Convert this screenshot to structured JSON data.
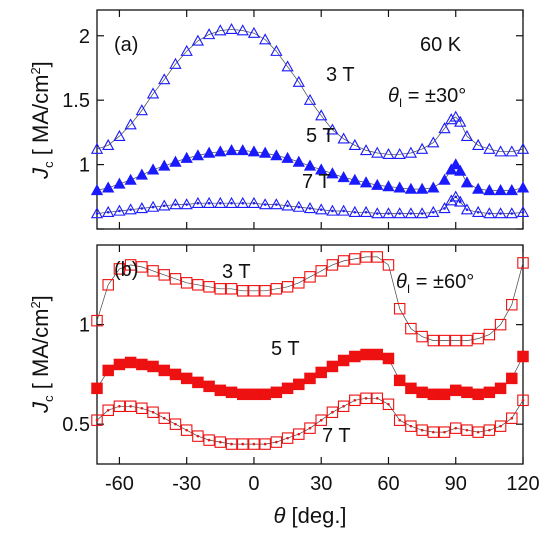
{
  "chart_data": [
    {
      "type": "scatter",
      "panel_label": "(a)",
      "annotations": [
        "60 K",
        "θ",
        "I",
        " = ±30°"
      ],
      "ylabel_parts": [
        "J",
        "c",
        " [ MA/cm",
        "2",
        "]"
      ],
      "xlim": [
        -70,
        120
      ],
      "ylim": [
        0.5,
        2.2
      ],
      "yticks": [
        {
          "value": 0.5,
          "label": ""
        },
        {
          "value": 1.0,
          "label": "1"
        },
        {
          "value": 1.5,
          "label": "1.5"
        },
        {
          "value": 2.0,
          "label": "2"
        }
      ],
      "series": [
        {
          "name": "3 T",
          "marker": "triangle-open",
          "color": "#1a1aff",
          "x": [
            -70,
            -65,
            -60,
            -55,
            -50,
            -45,
            -40,
            -35,
            -30,
            -25,
            -20,
            -15,
            -10,
            -5,
            0,
            5,
            10,
            15,
            20,
            25,
            30,
            35,
            40,
            45,
            50,
            55,
            60,
            65,
            70,
            75,
            80,
            85,
            88,
            90,
            92,
            95,
            100,
            105,
            110,
            115,
            120
          ],
          "y": [
            1.12,
            1.15,
            1.22,
            1.31,
            1.42,
            1.55,
            1.66,
            1.78,
            1.88,
            1.96,
            2.01,
            2.04,
            2.05,
            2.04,
            2.02,
            1.97,
            1.88,
            1.76,
            1.64,
            1.5,
            1.38,
            1.27,
            1.2,
            1.15,
            1.11,
            1.09,
            1.08,
            1.08,
            1.09,
            1.12,
            1.17,
            1.28,
            1.35,
            1.37,
            1.33,
            1.22,
            1.15,
            1.12,
            1.1,
            1.1,
            1.12
          ]
        },
        {
          "name": "5 T",
          "marker": "triangle-filled",
          "color": "#1a1aff",
          "x": [
            -70,
            -65,
            -60,
            -55,
            -50,
            -45,
            -40,
            -35,
            -30,
            -25,
            -20,
            -15,
            -10,
            -5,
            0,
            5,
            10,
            15,
            20,
            25,
            30,
            35,
            40,
            45,
            50,
            55,
            60,
            65,
            70,
            75,
            80,
            85,
            88,
            90,
            92,
            95,
            100,
            105,
            110,
            115,
            120
          ],
          "y": [
            0.8,
            0.82,
            0.85,
            0.88,
            0.92,
            0.96,
            0.99,
            1.02,
            1.05,
            1.07,
            1.09,
            1.1,
            1.11,
            1.11,
            1.1,
            1.09,
            1.07,
            1.05,
            1.02,
            0.99,
            0.96,
            0.93,
            0.9,
            0.88,
            0.86,
            0.84,
            0.83,
            0.82,
            0.81,
            0.81,
            0.82,
            0.88,
            0.96,
            1.0,
            0.95,
            0.86,
            0.81,
            0.8,
            0.8,
            0.8,
            0.82
          ]
        },
        {
          "name": "7 T",
          "marker": "triangle-dot",
          "color": "#1a1aff",
          "x": [
            -70,
            -65,
            -60,
            -55,
            -50,
            -45,
            -40,
            -35,
            -30,
            -25,
            -20,
            -15,
            -10,
            -5,
            0,
            5,
            10,
            15,
            20,
            25,
            30,
            35,
            40,
            45,
            50,
            55,
            60,
            65,
            70,
            75,
            80,
            85,
            88,
            90,
            92,
            95,
            100,
            105,
            110,
            115,
            120
          ],
          "y": [
            0.62,
            0.63,
            0.64,
            0.65,
            0.66,
            0.67,
            0.68,
            0.69,
            0.69,
            0.7,
            0.7,
            0.7,
            0.7,
            0.7,
            0.7,
            0.69,
            0.69,
            0.68,
            0.67,
            0.66,
            0.65,
            0.64,
            0.64,
            0.63,
            0.63,
            0.62,
            0.62,
            0.62,
            0.62,
            0.62,
            0.63,
            0.66,
            0.72,
            0.75,
            0.71,
            0.65,
            0.63,
            0.62,
            0.62,
            0.62,
            0.63
          ]
        }
      ]
    },
    {
      "type": "scatter",
      "panel_label": "(b)",
      "annotations": [
        "θ",
        "I",
        " = ±60°"
      ],
      "ylabel_parts": [
        "J",
        "c",
        " [ MA/cm",
        "2",
        "]"
      ],
      "xlabel_parts": [
        "θ",
        " [deg.]"
      ],
      "xlim": [
        -70,
        120
      ],
      "ylim": [
        0.3,
        1.4
      ],
      "xticks": [
        {
          "value": -60,
          "label": "-60"
        },
        {
          "value": -30,
          "label": "-30"
        },
        {
          "value": 0,
          "label": "0"
        },
        {
          "value": 30,
          "label": "30"
        },
        {
          "value": 60,
          "label": "60"
        },
        {
          "value": 90,
          "label": "90"
        },
        {
          "value": 120,
          "label": "120"
        }
      ],
      "yticks": [
        {
          "value": 0.5,
          "label": "0.5"
        },
        {
          "value": 1.0,
          "label": "1"
        }
      ],
      "series": [
        {
          "name": "3 T",
          "marker": "square-open",
          "color": "#ee1111",
          "x": [
            -70,
            -65,
            -60,
            -55,
            -50,
            -45,
            -40,
            -35,
            -30,
            -25,
            -20,
            -15,
            -10,
            -5,
            0,
            5,
            10,
            15,
            20,
            25,
            30,
            35,
            40,
            45,
            50,
            55,
            60,
            65,
            70,
            75,
            80,
            85,
            90,
            95,
            100,
            105,
            110,
            115,
            120
          ],
          "y": [
            1.02,
            1.2,
            1.28,
            1.3,
            1.29,
            1.27,
            1.25,
            1.23,
            1.21,
            1.2,
            1.19,
            1.18,
            1.18,
            1.17,
            1.17,
            1.17,
            1.18,
            1.19,
            1.21,
            1.24,
            1.27,
            1.3,
            1.32,
            1.33,
            1.34,
            1.34,
            1.3,
            1.08,
            0.98,
            0.94,
            0.92,
            0.92,
            0.92,
            0.92,
            0.93,
            0.95,
            1.0,
            1.1,
            1.31
          ]
        },
        {
          "name": "5 T",
          "marker": "square-filled",
          "color": "#ee1111",
          "x": [
            -70,
            -65,
            -60,
            -55,
            -50,
            -45,
            -40,
            -35,
            -30,
            -25,
            -20,
            -15,
            -10,
            -5,
            0,
            5,
            10,
            15,
            20,
            25,
            30,
            35,
            40,
            45,
            50,
            55,
            60,
            65,
            70,
            75,
            80,
            85,
            90,
            95,
            100,
            105,
            110,
            115,
            120
          ],
          "y": [
            0.68,
            0.77,
            0.8,
            0.81,
            0.8,
            0.79,
            0.77,
            0.75,
            0.73,
            0.71,
            0.69,
            0.67,
            0.66,
            0.65,
            0.65,
            0.65,
            0.66,
            0.68,
            0.7,
            0.73,
            0.76,
            0.79,
            0.82,
            0.84,
            0.85,
            0.85,
            0.83,
            0.72,
            0.68,
            0.66,
            0.65,
            0.65,
            0.67,
            0.66,
            0.65,
            0.66,
            0.68,
            0.73,
            0.84
          ]
        },
        {
          "name": "7 T",
          "marker": "square-dot",
          "color": "#ee1111",
          "x": [
            -70,
            -65,
            -60,
            -55,
            -50,
            -45,
            -40,
            -35,
            -30,
            -25,
            -20,
            -15,
            -10,
            -5,
            0,
            5,
            10,
            15,
            20,
            25,
            30,
            35,
            40,
            45,
            50,
            55,
            60,
            65,
            70,
            75,
            80,
            85,
            90,
            95,
            100,
            105,
            110,
            115,
            120
          ],
          "y": [
            0.52,
            0.57,
            0.59,
            0.59,
            0.58,
            0.56,
            0.53,
            0.5,
            0.47,
            0.44,
            0.42,
            0.41,
            0.4,
            0.4,
            0.4,
            0.4,
            0.41,
            0.43,
            0.45,
            0.48,
            0.52,
            0.56,
            0.59,
            0.62,
            0.63,
            0.63,
            0.6,
            0.52,
            0.49,
            0.47,
            0.46,
            0.46,
            0.48,
            0.47,
            0.46,
            0.47,
            0.49,
            0.53,
            0.62
          ]
        }
      ]
    }
  ]
}
